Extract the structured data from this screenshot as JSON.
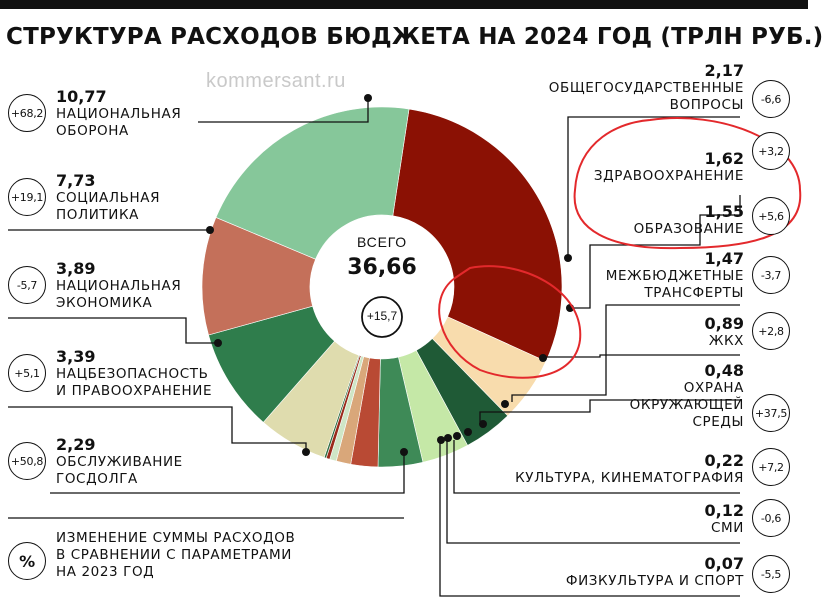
{
  "title": "СТРУКТУРА РАСХОДОВ БЮДЖЕТА НА 2024 ГОД (ТРЛН РУБ.)",
  "watermark": "kommersant.ru",
  "total": {
    "label": "ВСЕГО",
    "value": "36,66",
    "change": "+15,7"
  },
  "legend_note": {
    "symbol": "%",
    "text": "ИЗМЕНЕНИЕ СУММЫ РАСХОДОВ\nВ СРАВНЕНИИ С ПАРАМЕТРАМИ\nНА 2023 ГОД"
  },
  "chart_data": {
    "type": "pie",
    "title": "СТРУКТУРА РАСХОДОВ БЮДЖЕТА НА 2024 ГОД (ТРЛН РУБ.)",
    "total": 36.66,
    "slices": [
      {
        "name": "НАЦИОНАЛЬНАЯ ОБОРОНА",
        "value": 10.77,
        "value_label": "10,77",
        "change": "+68,2",
        "color": "#8b1104"
      },
      {
        "name": "ОБЩЕГОСУДАРСТВЕННЫЕ ВОПРОСЫ",
        "value": 2.17,
        "value_label": "2,17",
        "change": "-6,6",
        "color": "#f8dcad"
      },
      {
        "name": "ЗДРАВООХРАНЕНИЕ",
        "value": 1.62,
        "value_label": "1,62",
        "change": "+3,2",
        "color": "#1f5a36"
      },
      {
        "name": "ОБРАЗОВАНИЕ",
        "value": 1.55,
        "value_label": "1,55",
        "change": "+5,6",
        "color": "#c5e8a7"
      },
      {
        "name": "МЕЖБЮДЖЕТНЫЕ ТРАНСФЕРТЫ",
        "value": 1.47,
        "value_label": "1,47",
        "change": "-3,7",
        "color": "#3e8a57"
      },
      {
        "name": "ЖКХ",
        "value": 0.89,
        "value_label": "0,89",
        "change": "+2,8",
        "color": "#b94a34"
      },
      {
        "name": "ОХРАНА ОКРУЖАЮЩЕЙ СРЕДЫ",
        "value": 0.48,
        "value_label": "0,48",
        "change": "+37,5",
        "color": "#d9a77a"
      },
      {
        "name": "КУЛЬТУРА, КИНЕМАТОГРАФИЯ",
        "value": 0.22,
        "value_label": "0,22",
        "change": "+7,2",
        "color": "#cfe6c6"
      },
      {
        "name": "СМИ",
        "value": 0.12,
        "value_label": "0,12",
        "change": "-0,6",
        "color": "#9a2a1a"
      },
      {
        "name": "ФИЗКУЛЬТУРА И СПОРТ",
        "value": 0.07,
        "value_label": "0,07",
        "change": "-5,5",
        "color": "#2e6b40"
      },
      {
        "name": "ОБСЛУЖИВАНИЕ ГОСДОЛГА",
        "value": 2.29,
        "value_label": "2,29",
        "change": "+50,8",
        "color": "#dfdcae"
      },
      {
        "name": "НАЦБЕЗОПАСНОСТЬ И ПРАВООХРАНЕНИЕ",
        "value": 3.39,
        "value_label": "3,39",
        "change": "+5,1",
        "color": "#2f7d4c"
      },
      {
        "name": "НАЦИОНАЛЬНАЯ ЭКОНОМИКА",
        "value": 3.89,
        "value_label": "3,89",
        "change": "-5,7",
        "color": "#c4705a"
      },
      {
        "name": "СОЦИАЛЬНАЯ ПОЛИТИКА",
        "value": 7.73,
        "value_label": "7,73",
        "change": "+19,1",
        "color": "#86c79a"
      }
    ]
  },
  "left_labels": {
    "defense": {
      "value": "10,77",
      "name": "НАЦИОНАЛЬНАЯ\nОБОРОНА",
      "change": "+68,2"
    },
    "social": {
      "value": "7,73",
      "name": "СОЦИАЛЬНАЯ\nПОЛИТИКА",
      "change": "+19,1"
    },
    "economy": {
      "value": "3,89",
      "name": "НАЦИОНАЛЬНАЯ\nЭКОНОМИКА",
      "change": "-5,7"
    },
    "security": {
      "value": "3,39",
      "name": "НАЦБЕЗОПАСНОСТЬ\nИ ПРАВООХРАНЕНИЕ",
      "change": "+5,1"
    },
    "debt": {
      "value": "2,29",
      "name": "ОБСЛУЖИВАНИЕ\nГОСДОЛГА",
      "change": "+50,8"
    }
  },
  "right_labels": {
    "general": {
      "value": "2,17",
      "name": "ОБЩЕГОСУДАРСТВЕННЫЕ\nВОПРОСЫ",
      "change": "-6,6"
    },
    "health": {
      "value": "1,62",
      "name": "ЗДРАВООХРАНЕНИЕ",
      "change": "+3,2"
    },
    "education": {
      "value": "1,55",
      "name": "ОБРАЗОВАНИЕ",
      "change": "+5,6"
    },
    "transfers": {
      "value": "1,47",
      "name": "МЕЖБЮДЖЕТНЫЕ\nТРАНСФЕРТЫ",
      "change": "-3,7"
    },
    "housing": {
      "value": "0,89",
      "name": "ЖКХ",
      "change": "+2,8"
    },
    "ecology": {
      "value": "0,48",
      "name": "ОХРАНА\nОКРУЖАЮЩЕЙ\nСРЕДЫ",
      "change": "+37,5"
    },
    "culture": {
      "value": "0,22",
      "name": "КУЛЬТУРА, КИНЕМАТОГРАФИЯ",
      "change": "+7,2"
    },
    "media": {
      "value": "0,12",
      "name": "СМИ",
      "change": "-0,6"
    },
    "sport": {
      "value": "0,07",
      "name": "ФИЗКУЛЬТУРА И СПОРТ",
      "change": "-5,5"
    }
  }
}
